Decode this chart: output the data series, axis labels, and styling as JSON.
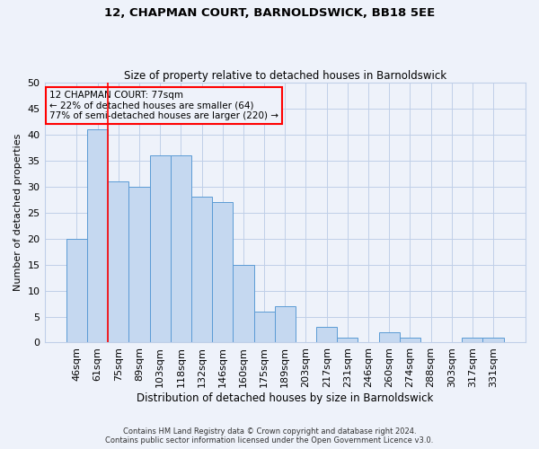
{
  "title1": "12, CHAPMAN COURT, BARNOLDSWICK, BB18 5EE",
  "title2": "Size of property relative to detached houses in Barnoldswick",
  "xlabel": "Distribution of detached houses by size in Barnoldswick",
  "ylabel": "Number of detached properties",
  "footer1": "Contains HM Land Registry data © Crown copyright and database right 2024.",
  "footer2": "Contains public sector information licensed under the Open Government Licence v3.0.",
  "categories": [
    "46sqm",
    "61sqm",
    "75sqm",
    "89sqm",
    "103sqm",
    "118sqm",
    "132sqm",
    "146sqm",
    "160sqm",
    "175sqm",
    "189sqm",
    "203sqm",
    "217sqm",
    "231sqm",
    "246sqm",
    "260sqm",
    "274sqm",
    "288sqm",
    "303sqm",
    "317sqm",
    "331sqm"
  ],
  "values": [
    20,
    41,
    31,
    30,
    36,
    36,
    28,
    27,
    15,
    6,
    7,
    0,
    3,
    1,
    0,
    2,
    1,
    0,
    0,
    1,
    1
  ],
  "bar_color": "#c5d8f0",
  "bar_edge_color": "#5b9bd5",
  "red_line_index": 2,
  "ylim": [
    0,
    50
  ],
  "yticks": [
    0,
    5,
    10,
    15,
    20,
    25,
    30,
    35,
    40,
    45,
    50
  ],
  "annotation_title": "12 CHAPMAN COURT: 77sqm",
  "annotation_line1": "← 22% of detached houses are smaller (64)",
  "annotation_line2": "77% of semi-detached houses are larger (220) →",
  "bg_color": "#eef2fa",
  "grid_color": "#c0cfe8"
}
